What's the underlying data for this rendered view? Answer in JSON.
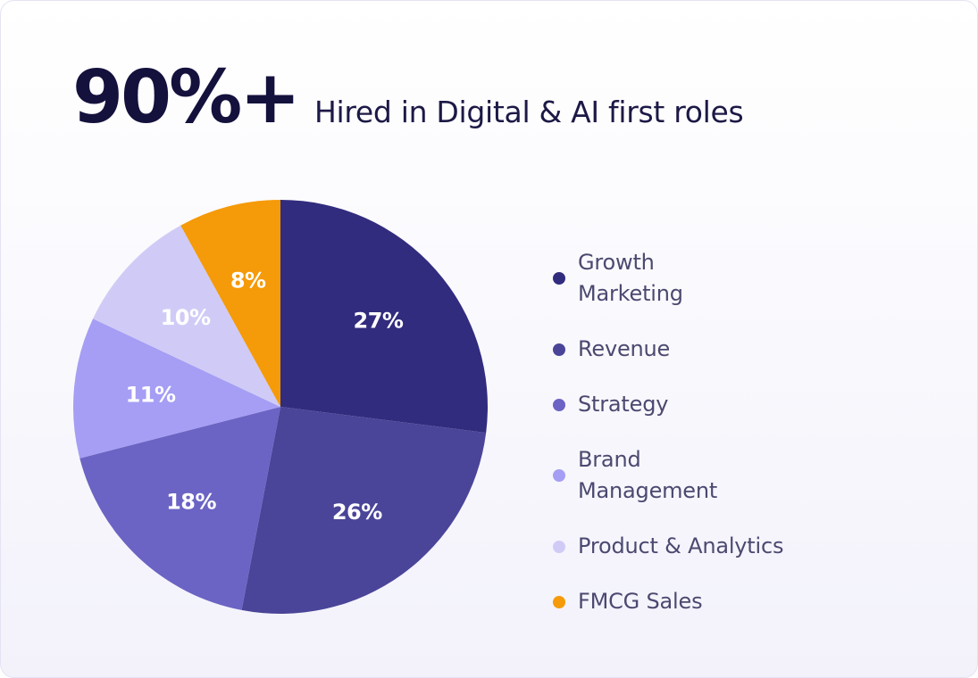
{
  "header": {
    "stat": "90%+",
    "subtitle": "Hired in Digital & AI first roles"
  },
  "chart_data": {
    "type": "pie",
    "categories": [
      "Growth Marketing",
      "Revenue",
      "Strategy",
      "Brand Management",
      "Product & Analytics",
      "FMCG Sales"
    ],
    "values": [
      27,
      26,
      18,
      11,
      10,
      8
    ],
    "value_labels": [
      "27%",
      "26%",
      "18%",
      "11%",
      "10%",
      "8%"
    ],
    "colors": [
      "#312c7d",
      "#4a4598",
      "#6b64c4",
      "#a59ef4",
      "#d0cbf6",
      "#f59a08"
    ],
    "label_colors": [
      "#ffffff",
      "#ffffff",
      "#ffffff",
      "#ffffff",
      "#ffffff",
      "#ffffff"
    ],
    "start_angle": "12 o'clock",
    "direction": "clockwise",
    "legend_position": "right"
  }
}
